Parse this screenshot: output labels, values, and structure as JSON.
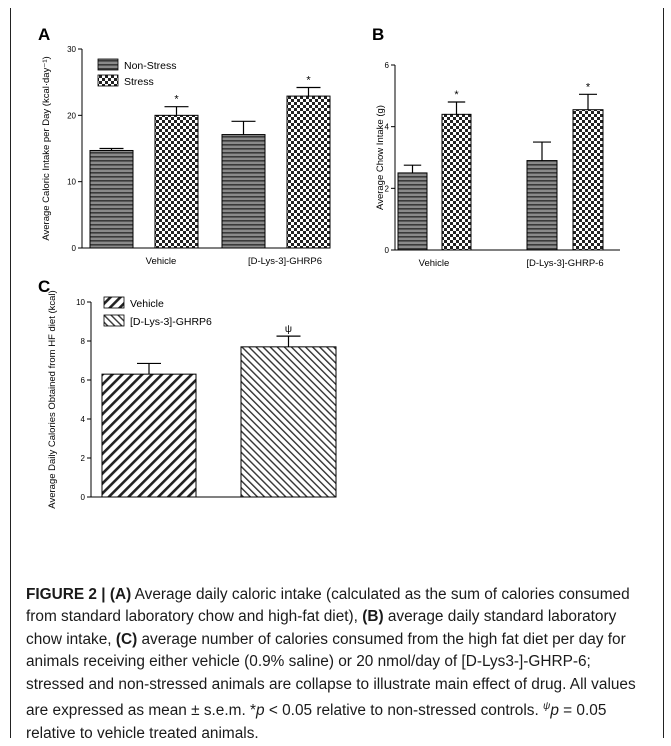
{
  "chart_data": [
    {
      "panel": "A",
      "type": "bar",
      "ylabel": "Average Caloric  Intake per Day (kcal·day⁻¹)",
      "ylim": [
        0,
        30
      ],
      "yticks": [
        "0",
        "10",
        "20",
        "30"
      ],
      "categories": [
        "Vehicle",
        "[D-Lys-3]-GHRP6"
      ],
      "legend": [
        "Non-Stress",
        "Stress"
      ],
      "legend_position": "top-left",
      "series": [
        {
          "name": "Non-Stress",
          "values": [
            14.7,
            17.1
          ],
          "errors": [
            0.3,
            2.0
          ],
          "pattern": "horizontal",
          "markers": [
            "",
            ""
          ]
        },
        {
          "name": "Stress",
          "values": [
            20.0,
            22.9
          ],
          "errors": [
            1.3,
            1.3
          ],
          "pattern": "checker",
          "markers": [
            "*",
            "*"
          ]
        }
      ]
    },
    {
      "panel": "B",
      "type": "bar",
      "ylabel": "Average Chow Intake (g)",
      "ylim": [
        0,
        6
      ],
      "yticks": [
        "0",
        "2",
        "4",
        "6"
      ],
      "categories": [
        "Vehicle",
        "[D-Lys-3]-GHRP-6"
      ],
      "series": [
        {
          "name": "Non-Stress",
          "values": [
            2.5,
            2.9
          ],
          "errors": [
            0.25,
            0.6
          ],
          "pattern": "horizontal",
          "markers": [
            "",
            ""
          ]
        },
        {
          "name": "Stress",
          "values": [
            4.4,
            4.55
          ],
          "errors": [
            0.4,
            0.5
          ],
          "pattern": "checker",
          "markers": [
            "*",
            "*"
          ]
        }
      ]
    },
    {
      "panel": "C",
      "type": "bar",
      "ylabel": "Average Daily Calories Obtained from HF diet (kcal)",
      "ylim": [
        0,
        10
      ],
      "yticks": [
        "0",
        "2",
        "4",
        "6",
        "8",
        "10"
      ],
      "categories": [
        "Vehicle",
        "[D-Lys-3]-GHRP6"
      ],
      "legend": [
        "Vehicle",
        "[D-Lys-3]-GHRP6"
      ],
      "legend_position": "top-left",
      "values": [
        6.3,
        7.7
      ],
      "errors": [
        0.55,
        0.55
      ],
      "patterns": [
        "diagonal-back",
        "diagonal-forward"
      ],
      "markers": [
        "",
        "ψ"
      ]
    }
  ],
  "caption": {
    "figure_label": "FIGURE 2 | ",
    "label_a": "(A)",
    "text_a": " Average daily caloric intake (calculated as the sum of calories consumed from standard laboratory chow and high-fat diet), ",
    "label_b": "(B)",
    "text_b": " average daily standard laboratory chow intake, ",
    "label_c": "(C)",
    "text_c": " average number of calories consumed from the high fat diet per day for animals receiving either vehicle (0.9% saline) or 20 nmol/day of [D-Lys3-]-GHRP-6; stressed and non-stressed animals are collapse to illustrate main effect of drug. All values are expressed as mean ± s.e.m. *",
    "p1": "p",
    "text_d": " < 0.05 relative to non-stressed controls. ",
    "psi": "ψ",
    "p2": "p",
    "text_e": " = 0.05 relative to vehicle treated animals."
  }
}
